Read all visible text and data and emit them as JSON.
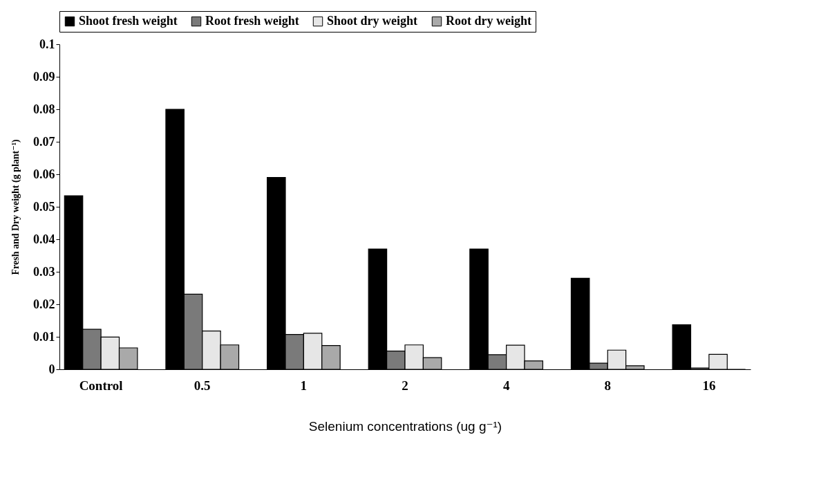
{
  "chart_data": {
    "type": "bar",
    "categories": [
      "Control",
      "0.5",
      "1",
      "2",
      "4",
      "8",
      "16"
    ],
    "xlabel": "Selenium concentrations (ug g⁻¹)",
    "ylabel": "Fresh and Dry weight (g plant⁻¹)",
    "ylim": [
      0,
      0.1
    ],
    "yticks": [
      0,
      0.01,
      0.02,
      0.03,
      0.04,
      0.05,
      0.06,
      0.07,
      0.08,
      0.09,
      0.1
    ],
    "grid": false,
    "legend": "top",
    "series": [
      {
        "name": "Shoot fresh weight",
        "color": "#000000",
        "values": [
          0.0534,
          0.08,
          0.059,
          0.037,
          0.037,
          0.028,
          0.0137
        ]
      },
      {
        "name": "Root fresh weight",
        "color": "#7a7a7a",
        "values": [
          0.0123,
          0.0231,
          0.0107,
          0.0056,
          0.0045,
          0.0019,
          0.0004
        ]
      },
      {
        "name": "Shoot dry weight",
        "color": "#e6e6e6",
        "values": [
          0.0099,
          0.0118,
          0.0111,
          0.0075,
          0.0074,
          0.0059,
          0.0046
        ]
      },
      {
        "name": "Root dry weight",
        "color": "#a9a9a9",
        "values": [
          0.0066,
          0.0075,
          0.0073,
          0.0036,
          0.0026,
          0.0011,
          0
        ]
      }
    ]
  }
}
